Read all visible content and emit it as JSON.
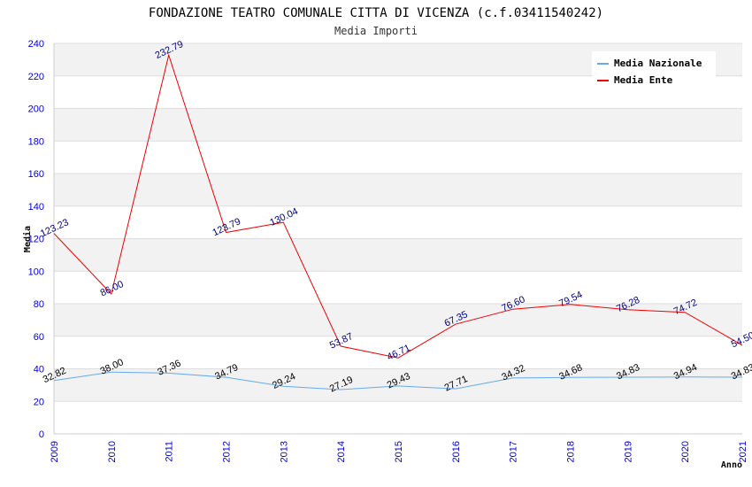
{
  "chart_data": {
    "type": "line",
    "title": "FONDAZIONE TEATRO COMUNALE CITTA DI VICENZA (c.f.03411540242)",
    "subtitle": "Media Importi",
    "xlabel": "Anno",
    "ylabel": "Media",
    "ylim": [
      0,
      240
    ],
    "yticks": [
      0,
      20,
      40,
      60,
      80,
      100,
      120,
      140,
      160,
      180,
      200,
      220,
      240
    ],
    "categories": [
      "2009",
      "2010",
      "2011",
      "2012",
      "2013",
      "2014",
      "2015",
      "2016",
      "2017",
      "2018",
      "2019",
      "2020",
      "2021"
    ],
    "grid": "horizontal",
    "legend_position": "top-right",
    "series": [
      {
        "name": "Media Nazionale",
        "color": "#66aaee",
        "label_color": "#000000",
        "values": [
          32.82,
          38.0,
          37.36,
          34.79,
          29.24,
          27.19,
          29.43,
          27.71,
          34.32,
          34.68,
          34.83,
          34.94,
          34.83
        ],
        "labels": [
          "32.82",
          "38.00",
          "37.36",
          "34.79",
          "29.24",
          "27.19",
          "29.43",
          "27.71",
          "34.32",
          "34.68",
          "34.83",
          "34.94",
          "34.83"
        ]
      },
      {
        "name": "Media Ente",
        "color": "#ee0000",
        "label_color": "#000080",
        "values": [
          123.23,
          86.0,
          232.79,
          123.79,
          130.04,
          53.87,
          46.71,
          67.35,
          76.6,
          79.54,
          76.28,
          74.72,
          54.5
        ],
        "labels": [
          "123.23",
          "86.00",
          "232.79",
          "123.79",
          "130.04",
          "53.87",
          "46.71",
          "67.35",
          "76.60",
          "79.54",
          "76.28",
          "74.72",
          "54.50"
        ]
      }
    ]
  }
}
